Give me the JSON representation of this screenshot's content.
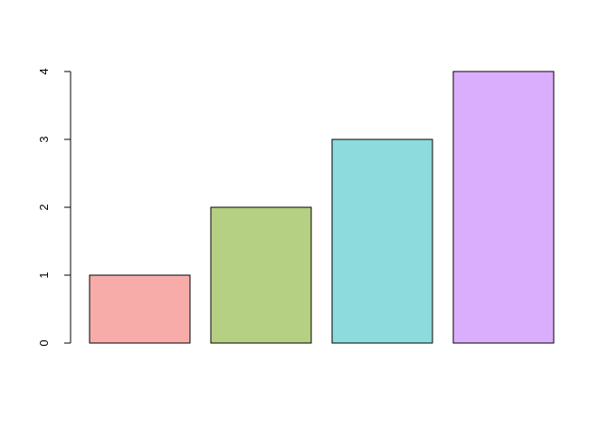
{
  "chart_data": {
    "type": "bar",
    "title": "",
    "xlabel": "",
    "ylabel": "",
    "categories": [
      "",
      "",
      "",
      ""
    ],
    "values": [
      1,
      2,
      3,
      4
    ],
    "bar_colors": [
      "#F8ACAA",
      "#B5CF83",
      "#8DDBDD",
      "#DBAEFD"
    ],
    "bar_border_color": "#000000",
    "ylim": [
      0,
      4
    ],
    "yticks": [
      0,
      1,
      2,
      3,
      4
    ],
    "ytick_labels": [
      "0",
      "1",
      "2",
      "3",
      "4"
    ],
    "grid": false,
    "legend": null
  }
}
